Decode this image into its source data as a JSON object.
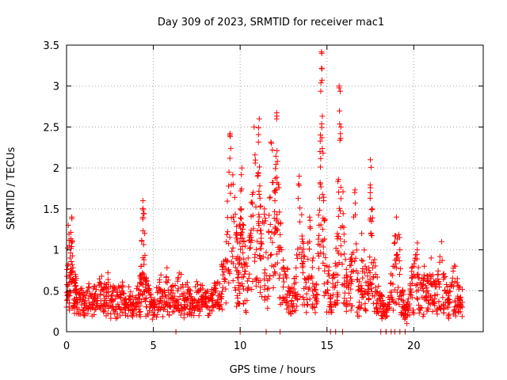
{
  "chart_data": {
    "type": "scatter",
    "title": "Day 309 of 2023, SRMTID for receiver mac1",
    "xlabel": "GPS time / hours",
    "ylabel": "SRMTID / TECUs",
    "xlim": [
      0,
      24
    ],
    "ylim": [
      0,
      3.5
    ],
    "x_ticks": [
      0,
      5,
      10,
      15,
      20
    ],
    "x_tick_labels": [
      "0",
      "5",
      "10",
      "15",
      "20"
    ],
    "y_ticks": [
      0,
      0.5,
      1,
      1.5,
      2,
      2.5,
      3,
      3.5
    ],
    "y_tick_labels": [
      "0",
      "0.5",
      "1",
      "1.5",
      "2",
      "2.5",
      "3",
      "3.5"
    ],
    "grid": true,
    "marker": "+",
    "color": "#ff0000",
    "series": [
      {
        "name": "SRMTID",
        "x": [
          0.0,
          0.1,
          0.2,
          0.3,
          0.4,
          0.5,
          0.6,
          0.8,
          1.0,
          1.2,
          1.4,
          1.6,
          1.8,
          2.0,
          2.2,
          2.4,
          2.6,
          2.8,
          3.0,
          3.2,
          3.4,
          3.6,
          3.8,
          4.0,
          4.2,
          4.3,
          4.4,
          4.5,
          4.6,
          4.8,
          5.0,
          5.2,
          5.4,
          5.6,
          5.8,
          6.0,
          6.2,
          6.4,
          6.6,
          6.8,
          7.0,
          7.2,
          7.4,
          7.6,
          7.8,
          8.0,
          8.2,
          8.4,
          8.6,
          8.8,
          9.0,
          9.2,
          9.4,
          9.6,
          9.8,
          9.9,
          10.0,
          10.1,
          10.2,
          10.4,
          10.6,
          10.8,
          11.0,
          11.1,
          11.2,
          11.4,
          11.6,
          11.8,
          12.0,
          12.1,
          12.2,
          12.4,
          12.6,
          12.8,
          13.0,
          13.2,
          13.4,
          13.6,
          13.8,
          14.0,
          14.2,
          14.4,
          14.6,
          14.7,
          14.8,
          15.0,
          15.2,
          15.4,
          15.6,
          15.7,
          15.8,
          16.0,
          16.2,
          16.4,
          16.6,
          16.8,
          17.0,
          17.2,
          17.4,
          17.5,
          17.6,
          17.8,
          18.0,
          18.2,
          18.4,
          18.6,
          18.8,
          19.0,
          19.2,
          19.4,
          19.5,
          19.6,
          19.8,
          20.0,
          20.2,
          20.4,
          20.6,
          20.8,
          21.0,
          21.2,
          21.4,
          21.6,
          21.8,
          22.0,
          22.2,
          22.4,
          22.6,
          22.8
        ],
        "y": [
          0.3,
          1.3,
          0.9,
          1.4,
          0.5,
          0.7,
          0.3,
          0.4,
          0.2,
          0.5,
          0.3,
          0.4,
          0.3,
          0.5,
          0.4,
          0.6,
          0.3,
          0.4,
          0.3,
          0.5,
          0.2,
          0.3,
          0.2,
          0.3,
          0.4,
          0.8,
          1.6,
          1.2,
          0.5,
          0.3,
          0.2,
          0.3,
          0.5,
          0.3,
          0.6,
          0.4,
          0.3,
          0.5,
          0.7,
          0.3,
          0.4,
          0.2,
          0.3,
          0.5,
          0.3,
          0.4,
          0.2,
          0.3,
          0.5,
          0.3,
          0.8,
          1.1,
          2.4,
          1.8,
          1.2,
          0.6,
          1.5,
          2.0,
          1.3,
          0.8,
          1.2,
          2.5,
          1.9,
          2.6,
          1.1,
          1.5,
          0.9,
          2.3,
          1.6,
          2.6,
          1.8,
          1.0,
          0.7,
          0.5,
          0.3,
          0.6,
          1.9,
          1.1,
          0.6,
          1.4,
          0.9,
          0.4,
          2.2,
          3.4,
          1.6,
          0.8,
          0.4,
          0.7,
          1.2,
          3.0,
          2.5,
          1.1,
          0.6,
          0.9,
          1.7,
          0.5,
          1.2,
          0.8,
          0.4,
          2.1,
          1.5,
          0.7,
          0.4,
          0.2,
          0.0,
          0.3,
          0.8,
          1.4,
          1.0,
          0.2,
          0.0,
          0.1,
          0.5,
          0.8,
          1.0,
          0.6,
          0.8,
          0.5,
          0.9,
          0.4,
          0.7,
          1.1,
          0.5,
          0.3,
          0.6,
          0.8,
          0.4,
          0.3
        ],
        "zero_x": [
          6.3,
          10.0,
          11.5,
          12.3,
          15.2,
          15.5,
          15.9,
          18.1,
          18.4,
          18.7,
          18.9,
          19.2
        ]
      }
    ]
  }
}
